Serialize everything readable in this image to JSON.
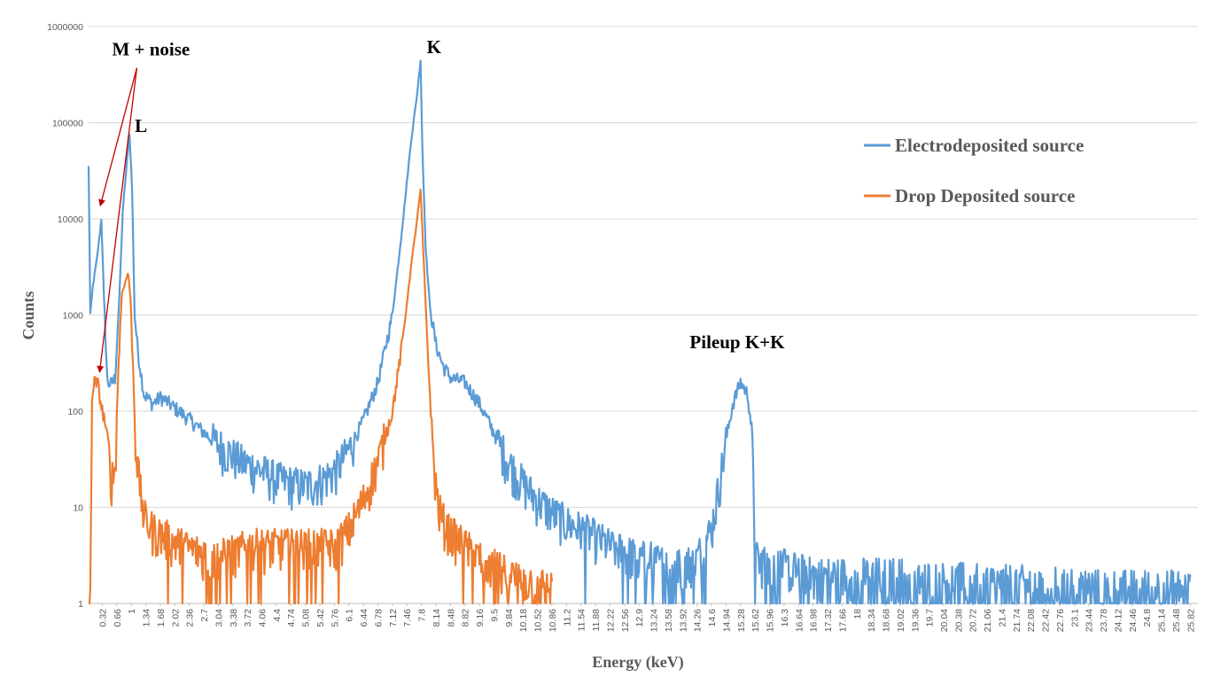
{
  "chart_data": {
    "type": "line",
    "xlabel": "Energy (keV)",
    "ylabel": "Counts",
    "y_scale": "log",
    "ylim": [
      1,
      1000000
    ],
    "y_ticks": [
      "1",
      "10",
      "100",
      "1000",
      "10000",
      "100000",
      "1000000"
    ],
    "xlim": [
      0.0,
      26.0
    ],
    "x_tick_labels": [
      "0.32",
      "0.66",
      "1",
      "1.34",
      "1.68",
      "2.02",
      "2.36",
      "2.7",
      "3.04",
      "3.38",
      "3.72",
      "4.06",
      "4.4",
      "4.74",
      "5.08",
      "5.42",
      "5.76",
      "6.1",
      "6.44",
      "6.78",
      "7.12",
      "7.46",
      "7.8",
      "8.14",
      "8.48",
      "8.82",
      "9.16",
      "9.5",
      "9.84",
      "10.18",
      "10.52",
      "10.86",
      "11.2",
      "11.54",
      "11.88",
      "12.22",
      "12.56",
      "12.9",
      "13.24",
      "13.58",
      "13.92",
      "14.26",
      "14.6",
      "14.94",
      "15.28",
      "15.62",
      "15.96",
      "16.3",
      "16.64",
      "16.98",
      "17.32",
      "17.66",
      "18",
      "18.34",
      "18.68",
      "19.02",
      "19.36",
      "19.7",
      "20.04",
      "20.38",
      "20.72",
      "21.06",
      "21.4",
      "21.74",
      "22.08",
      "22.42",
      "22.76",
      "23.1",
      "23.44",
      "23.78",
      "24.12",
      "24.46",
      "24.8",
      "25.14",
      "25.48",
      "25.82"
    ],
    "grid": "horizontal",
    "legend": "right",
    "series": [
      {
        "name": "Electrodeposited source",
        "color": "#5B9BD5",
        "points": [
          [
            0.0,
            35000
          ],
          [
            0.04,
            1000
          ],
          [
            0.1,
            2000
          ],
          [
            0.2,
            4000
          ],
          [
            0.3,
            10000
          ],
          [
            0.36,
            1500
          ],
          [
            0.44,
            200
          ],
          [
            0.52,
            190
          ],
          [
            0.62,
            220
          ],
          [
            0.72,
            1500
          ],
          [
            0.8,
            12000
          ],
          [
            0.9,
            40000
          ],
          [
            0.96,
            75000
          ],
          [
            1.02,
            20000
          ],
          [
            1.08,
            1000
          ],
          [
            1.16,
            400
          ],
          [
            1.3,
            150
          ],
          [
            1.5,
            120
          ],
          [
            1.7,
            140
          ],
          [
            2.0,
            110
          ],
          [
            2.4,
            80
          ],
          [
            2.8,
            55
          ],
          [
            3.2,
            40
          ],
          [
            3.6,
            30
          ],
          [
            4.0,
            25
          ],
          [
            4.4,
            20
          ],
          [
            4.74,
            18
          ],
          [
            5.1,
            17
          ],
          [
            5.5,
            20
          ],
          [
            5.8,
            25
          ],
          [
            6.1,
            40
          ],
          [
            6.44,
            80
          ],
          [
            6.78,
            200
          ],
          [
            7.12,
            1000
          ],
          [
            7.35,
            8000
          ],
          [
            7.55,
            60000
          ],
          [
            7.7,
            200000
          ],
          [
            7.78,
            450000
          ],
          [
            7.82,
            60000
          ],
          [
            7.9,
            5000
          ],
          [
            8.0,
            1200
          ],
          [
            8.14,
            500
          ],
          [
            8.3,
            300
          ],
          [
            8.5,
            220
          ],
          [
            8.82,
            200
          ],
          [
            9.16,
            120
          ],
          [
            9.5,
            60
          ],
          [
            9.84,
            30
          ],
          [
            10.18,
            18
          ],
          [
            10.52,
            12
          ],
          [
            10.86,
            9
          ],
          [
            11.2,
            7
          ],
          [
            11.54,
            6
          ],
          [
            11.88,
            5
          ],
          [
            12.22,
            4
          ],
          [
            12.56,
            3.5
          ],
          [
            12.9,
            3
          ],
          [
            13.24,
            3
          ],
          [
            13.58,
            2.5
          ],
          [
            13.92,
            2.5
          ],
          [
            14.26,
            3
          ],
          [
            14.6,
            6
          ],
          [
            14.8,
            20
          ],
          [
            14.94,
            50
          ],
          [
            15.1,
            120
          ],
          [
            15.28,
            200
          ],
          [
            15.45,
            150
          ],
          [
            15.55,
            60
          ],
          [
            15.62,
            3
          ],
          [
            15.96,
            2.5
          ],
          [
            16.3,
            2.5
          ],
          [
            16.98,
            2
          ],
          [
            17.66,
            2
          ],
          [
            18.34,
            2
          ],
          [
            19.02,
            2
          ],
          [
            19.7,
            1.8
          ],
          [
            20.38,
            1.8
          ],
          [
            21.06,
            1.7
          ],
          [
            21.74,
            1.7
          ],
          [
            22.42,
            1.6
          ],
          [
            23.1,
            1.6
          ],
          [
            23.78,
            1.5
          ],
          [
            24.46,
            1.5
          ],
          [
            25.14,
            1.5
          ],
          [
            25.82,
            1.5
          ]
        ]
      },
      {
        "name": "Drop Deposited source",
        "color": "#ED7D31",
        "points": [
          [
            0.0,
            1
          ],
          [
            0.04,
            1
          ],
          [
            0.08,
            150
          ],
          [
            0.14,
            200
          ],
          [
            0.22,
            190
          ],
          [
            0.3,
            110
          ],
          [
            0.38,
            80
          ],
          [
            0.46,
            40
          ],
          [
            0.54,
            20
          ],
          [
            0.62,
            25
          ],
          [
            0.7,
            300
          ],
          [
            0.78,
            1700
          ],
          [
            0.86,
            2200
          ],
          [
            0.93,
            2800
          ],
          [
            0.98,
            1500
          ],
          [
            1.04,
            300
          ],
          [
            1.1,
            50
          ],
          [
            1.18,
            20
          ],
          [
            1.3,
            8
          ],
          [
            1.5,
            6
          ],
          [
            1.8,
            5
          ],
          [
            2.2,
            4
          ],
          [
            2.6,
            3.5
          ],
          [
            3.0,
            3
          ],
          [
            3.4,
            3.5
          ],
          [
            3.8,
            4
          ],
          [
            4.2,
            4
          ],
          [
            4.6,
            4
          ],
          [
            5.0,
            4
          ],
          [
            5.4,
            4
          ],
          [
            5.8,
            4
          ],
          [
            6.1,
            6
          ],
          [
            6.44,
            12
          ],
          [
            6.78,
            30
          ],
          [
            7.12,
            100
          ],
          [
            7.35,
            500
          ],
          [
            7.55,
            3000
          ],
          [
            7.7,
            10000
          ],
          [
            7.78,
            20000
          ],
          [
            7.84,
            5000
          ],
          [
            7.92,
            800
          ],
          [
            8.0,
            150
          ],
          [
            8.1,
            25
          ],
          [
            8.2,
            10
          ],
          [
            8.4,
            6
          ],
          [
            8.82,
            4
          ],
          [
            9.16,
            3
          ],
          [
            9.5,
            2.5
          ],
          [
            9.84,
            2
          ],
          [
            10.18,
            1.8
          ],
          [
            10.52,
            1.6
          ],
          [
            10.86,
            1.5
          ]
        ]
      }
    ],
    "annotations": [
      {
        "text": "M + noise",
        "x": 0.3,
        "y": 500000
      },
      {
        "text": "L",
        "x": 1.0,
        "y": 80000
      },
      {
        "text": "K",
        "x": 7.8,
        "y": 530000
      },
      {
        "text": "Pileup K+K",
        "x": 15.2,
        "y": 450
      }
    ]
  }
}
